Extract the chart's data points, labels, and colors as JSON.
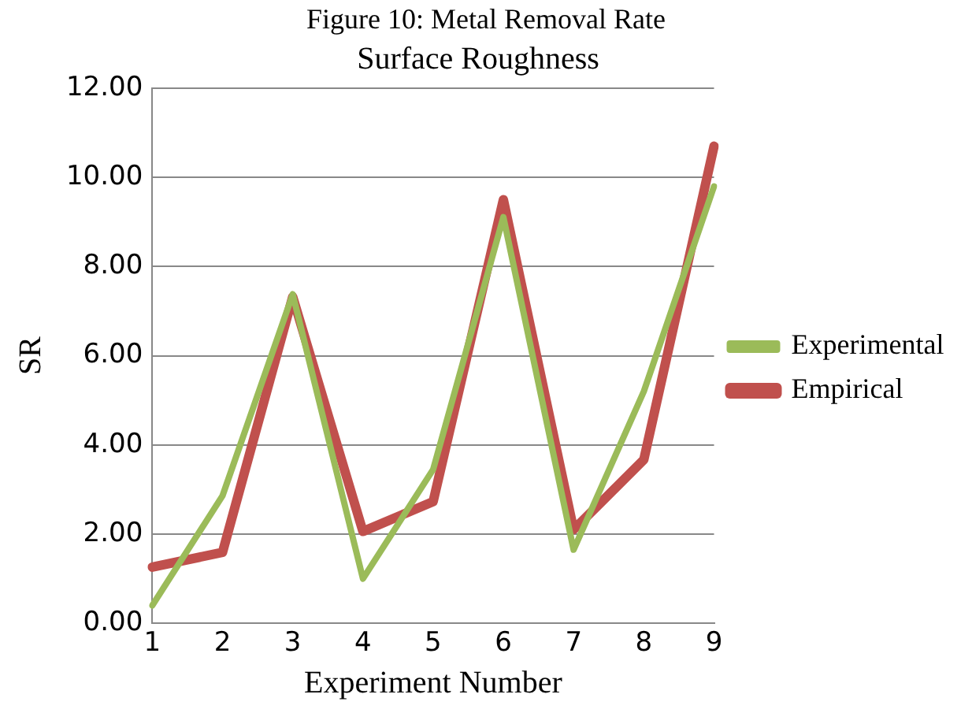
{
  "chart_data": {
    "type": "line",
    "title": "Surface Roughness",
    "xlabel": "Experiment Number",
    "ylabel": "SR",
    "annotations": [
      "Figure 10: Metal Removal Rate"
    ],
    "categories": [
      "1",
      "2",
      "3",
      "4",
      "5",
      "6",
      "7",
      "8",
      "9"
    ],
    "series": [
      {
        "name": "Experimental",
        "color": "#9bbb59",
        "values": [
          0.4,
          2.86,
          7.38,
          1.0,
          3.45,
          9.11,
          1.65,
          5.2,
          9.8
        ]
      },
      {
        "name": "Empirical",
        "color": "#c0504d",
        "values": [
          1.26,
          1.59,
          7.32,
          2.06,
          2.73,
          9.5,
          2.1,
          3.67,
          10.7
        ]
      }
    ],
    "ylim": [
      0,
      12
    ],
    "yticks": [
      {
        "value": 0,
        "label": "0.00"
      },
      {
        "value": 2,
        "label": "2.00"
      },
      {
        "value": 4,
        "label": "4.00"
      },
      {
        "value": 6,
        "label": "6.00"
      },
      {
        "value": 8,
        "label": "8.00"
      },
      {
        "value": 10,
        "label": "10.00"
      },
      {
        "value": 12,
        "label": "12.00"
      }
    ],
    "grid": "y",
    "legend": "right",
    "marker": "none",
    "line_style": "solid"
  }
}
